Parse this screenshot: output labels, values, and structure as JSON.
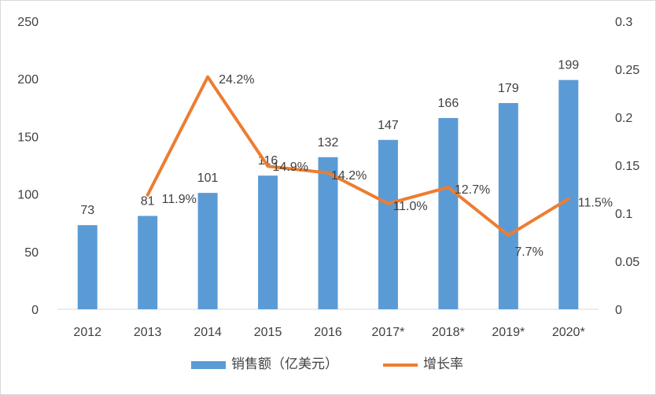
{
  "chart_data": {
    "type": "bar+line",
    "categories": [
      "2012",
      "2013",
      "2014",
      "2015",
      "2016",
      "2017*",
      "2018*",
      "2019*",
      "2020*"
    ],
    "series": [
      {
        "name": "销售额（亿美元）",
        "type": "bar",
        "axis": "left",
        "color": "#5b9bd5",
        "values": [
          73,
          81,
          101,
          116,
          132,
          147,
          166,
          179,
          199
        ],
        "labels": [
          "73",
          "81",
          "101",
          "116",
          "132",
          "147",
          "166",
          "179",
          "199"
        ]
      },
      {
        "name": "增长率",
        "type": "line",
        "axis": "right",
        "color": "#ed7d31",
        "values": [
          null,
          0.119,
          0.242,
          0.149,
          0.142,
          0.11,
          0.127,
          0.077,
          0.115
        ],
        "labels": [
          null,
          "11.9%",
          "24.2%",
          "14.9%",
          "14.2%",
          "11.0%",
          "12.7%",
          "7.7%",
          "11.5%"
        ]
      }
    ],
    "y_left": {
      "min": 0,
      "max": 250,
      "ticks": [
        "0",
        "50",
        "100",
        "150",
        "200",
        "250"
      ],
      "tick_values": [
        0,
        50,
        100,
        150,
        200,
        250
      ]
    },
    "y_right": {
      "min": 0,
      "max": 0.3,
      "ticks": [
        "0",
        "0.05",
        "0.1",
        "0.15",
        "0.2",
        "0.25",
        "0.3"
      ],
      "tick_values": [
        0,
        0.05,
        0.1,
        0.15,
        0.2,
        0.25,
        0.3
      ]
    },
    "grid": false,
    "legend": "bottom-center"
  }
}
